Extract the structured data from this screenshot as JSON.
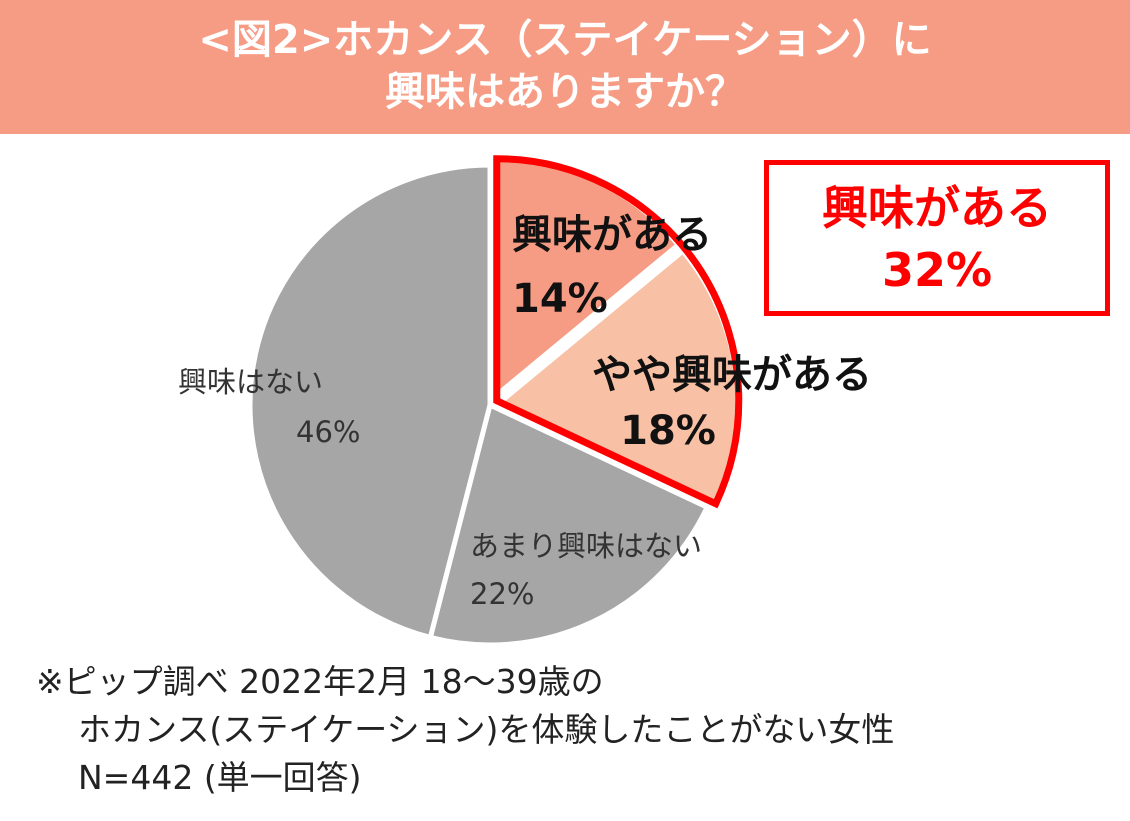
{
  "header": {
    "title_line1": "<図2>ホカンス（ステイケーション）に",
    "title_line2": "興味はありますか？"
  },
  "summary": {
    "label": "興味がある",
    "value": "32%"
  },
  "footnote": {
    "line1": "※ピップ調べ 2022年2月 18〜39歳の",
    "line2": "ホカンス(ステイケーション)を体験したことがない女性",
    "line3": "N=442 (単一回答)"
  },
  "colors": {
    "header_bg": "#f79c84",
    "highlight": "#ff0000",
    "interested": "#f79c84",
    "somewhat": "#f8c0a4",
    "not_interested": "#a6a6a6"
  },
  "chart_data": {
    "type": "pie",
    "start_angle": "12 o'clock",
    "direction": "clockwise",
    "slices": [
      {
        "label": "興味がある",
        "value": 14,
        "value_label": "14%",
        "color": "#f79c84"
      },
      {
        "label": "やや興味がある",
        "value": 18,
        "value_label": "18%",
        "color": "#f8c0a4"
      },
      {
        "label": "あまり興味はない",
        "value": 22,
        "value_label": "22%",
        "color": "#a6a6a6"
      },
      {
        "label": "興味はない",
        "value": 46,
        "value_label": "46%",
        "color": "#a6a6a6"
      }
    ],
    "highlight_group": {
      "slices": [
        0,
        1
      ],
      "label": "興味がある",
      "value_label": "32%"
    }
  }
}
